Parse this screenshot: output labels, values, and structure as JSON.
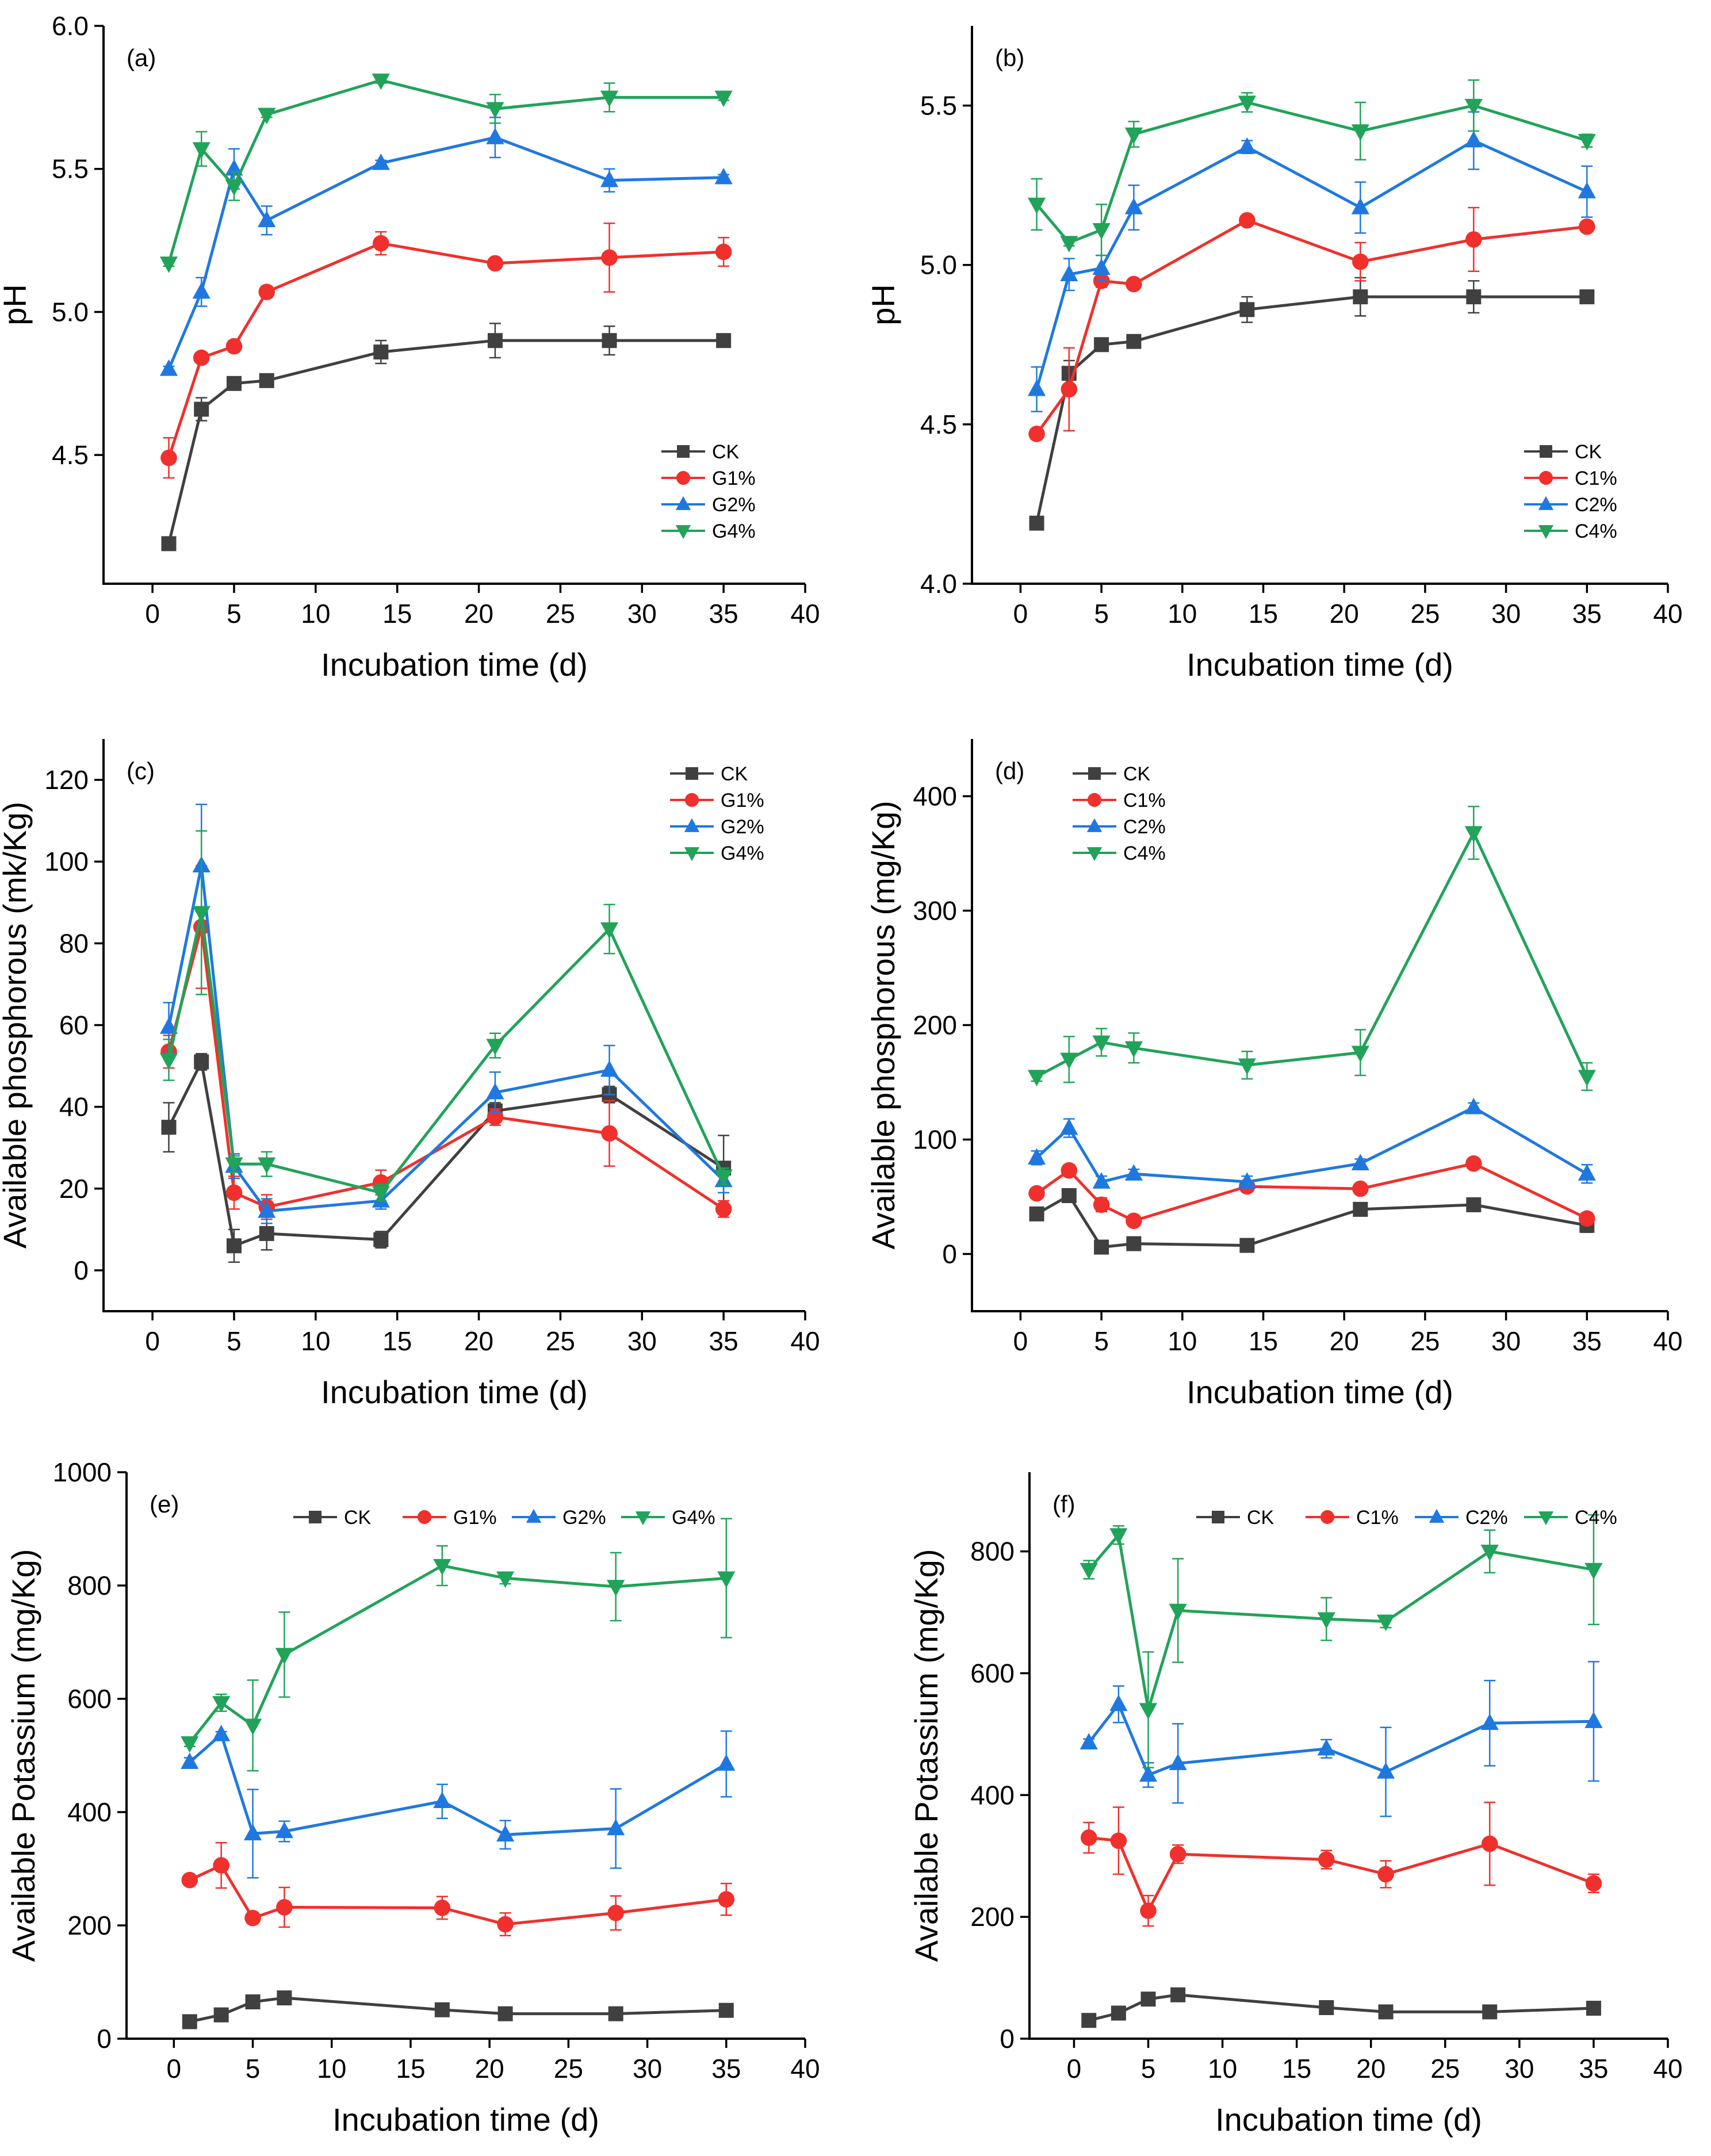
{
  "chart_data": [
    {
      "id": "a",
      "type": "line",
      "panel_label": "(a)",
      "xlabel": "Incubation time (d)",
      "ylabel": "pH",
      "xlim": [
        -3,
        40
      ],
      "ylim": [
        4.05,
        6.0
      ],
      "xticks": [
        0,
        5,
        10,
        15,
        20,
        25,
        30,
        35,
        40
      ],
      "yticks": [
        4.5,
        5.0,
        5.5,
        6.0
      ],
      "yticklabels": [
        "4.5",
        "5.0",
        "5.5",
        "6.0"
      ],
      "legend": "bottom-right-vertical",
      "x": [
        1,
        3,
        5,
        7,
        14,
        21,
        28,
        35
      ],
      "series": [
        {
          "name": "CK",
          "color": "#404040",
          "marker": "square",
          "values": [
            4.19,
            4.66,
            4.75,
            4.76,
            4.86,
            4.9,
            4.9,
            4.9
          ],
          "errors": [
            0.02,
            0.04,
            0.02,
            0.02,
            0.04,
            0.06,
            0.05,
            0.01
          ]
        },
        {
          "name": "G1%",
          "color": "#f0302c",
          "marker": "circle",
          "values": [
            4.49,
            4.84,
            4.88,
            5.07,
            5.24,
            5.17,
            5.19,
            5.21
          ],
          "errors": [
            0.07,
            0.01,
            0.02,
            0.02,
            0.04,
            0.01,
            0.12,
            0.05
          ]
        },
        {
          "name": "G2%",
          "color": "#1f78e0",
          "marker": "tri-up",
          "values": [
            4.8,
            5.07,
            5.5,
            5.32,
            5.52,
            5.61,
            5.46,
            5.47
          ],
          "errors": [
            0.01,
            0.05,
            0.07,
            0.05,
            0.01,
            0.07,
            0.04,
            0.01
          ]
        },
        {
          "name": "G4%",
          "color": "#21a359",
          "marker": "tri-down",
          "values": [
            5.17,
            5.57,
            5.44,
            5.69,
            5.81,
            5.71,
            5.75,
            5.75
          ],
          "errors": [
            0.01,
            0.06,
            0.05,
            0.01,
            0.01,
            0.05,
            0.05,
            0.01
          ]
        }
      ]
    },
    {
      "id": "b",
      "type": "line",
      "panel_label": "(b)",
      "xlabel": "Incubation time (d)",
      "ylabel": "pH",
      "xlim": [
        -3,
        40
      ],
      "ylim": [
        4.0,
        5.75
      ],
      "xticks": [
        0,
        5,
        10,
        15,
        20,
        25,
        30,
        35,
        40
      ],
      "yticks": [
        4.0,
        4.5,
        5.0,
        5.5
      ],
      "yticklabels": [
        "4.0",
        "4.5",
        "5.0",
        "5.5"
      ],
      "legend": "bottom-right-vertical",
      "x": [
        1,
        3,
        5,
        7,
        14,
        21,
        28,
        35
      ],
      "series": [
        {
          "name": "CK",
          "color": "#404040",
          "marker": "square",
          "values": [
            4.19,
            4.66,
            4.75,
            4.76,
            4.86,
            4.9,
            4.9,
            4.9
          ],
          "errors": [
            0.02,
            0.04,
            0.02,
            0.02,
            0.04,
            0.06,
            0.05,
            0.01
          ]
        },
        {
          "name": "C1%",
          "color": "#f0302c",
          "marker": "circle",
          "values": [
            4.47,
            4.61,
            4.95,
            4.94,
            5.14,
            5.01,
            5.08,
            5.12
          ],
          "errors": [
            0.01,
            0.13,
            0.02,
            0.01,
            0.01,
            0.06,
            0.1,
            0.01
          ]
        },
        {
          "name": "C2%",
          "color": "#1f78e0",
          "marker": "tri-up",
          "values": [
            4.61,
            4.97,
            4.99,
            5.18,
            5.37,
            5.18,
            5.39,
            5.23
          ],
          "errors": [
            0.07,
            0.05,
            0.04,
            0.07,
            0.02,
            0.08,
            0.09,
            0.08
          ]
        },
        {
          "name": "C4%",
          "color": "#21a359",
          "marker": "tri-down",
          "values": [
            5.19,
            5.07,
            5.11,
            5.41,
            5.51,
            5.42,
            5.5,
            5.39
          ],
          "errors": [
            0.08,
            0.01,
            0.08,
            0.04,
            0.03,
            0.09,
            0.08,
            0.02
          ]
        }
      ]
    },
    {
      "id": "c",
      "type": "line",
      "panel_label": "(c)",
      "xlabel": "Incubation time (d)",
      "ylabel": "Available phosphorous (mk/Kg)",
      "xlim": [
        -3,
        40
      ],
      "ylim": [
        -10,
        130
      ],
      "xticks": [
        0,
        5,
        10,
        15,
        20,
        25,
        30,
        35,
        40
      ],
      "yticks": [
        0,
        20,
        40,
        60,
        80,
        100,
        120
      ],
      "yticklabels": [
        "0",
        "20",
        "40",
        "60",
        "80",
        "100",
        "120"
      ],
      "legend": "top-right-vertical",
      "x": [
        1,
        3,
        5,
        7,
        14,
        21,
        28,
        35
      ],
      "series": [
        {
          "name": "CK",
          "color": "#404040",
          "marker": "square",
          "values": [
            35,
            51,
            6,
            9,
            7.5,
            39,
            43,
            25
          ],
          "errors": [
            6,
            2,
            4,
            4,
            2,
            2,
            2,
            8
          ]
        },
        {
          "name": "G1%",
          "color": "#f0302c",
          "marker": "circle",
          "values": [
            53.5,
            84,
            19,
            15.5,
            21.5,
            37.5,
            33.5,
            15
          ],
          "errors": [
            4,
            15,
            4,
            3,
            3,
            2,
            8,
            2
          ]
        },
        {
          "name": "G2%",
          "color": "#1f78e0",
          "marker": "tri-up",
          "values": [
            59.5,
            99,
            25.5,
            14.5,
            17,
            43.5,
            49,
            22
          ],
          "errors": [
            6,
            15,
            3,
            3,
            2,
            5,
            6,
            3
          ]
        },
        {
          "name": "G4%",
          "color": "#21a359",
          "marker": "tri-down",
          "values": [
            51.5,
            87.5,
            26,
            26,
            19,
            55,
            83.5,
            23
          ],
          "errors": [
            5,
            20,
            2,
            3,
            2,
            3,
            6,
            2
          ]
        }
      ]
    },
    {
      "id": "d",
      "type": "line",
      "panel_label": "(d)",
      "xlabel": "Incubation time (d)",
      "ylabel": "Available phosphorous (mg/Kg)",
      "xlim": [
        -3,
        40
      ],
      "ylim": [
        -50,
        450
      ],
      "xticks": [
        0,
        5,
        10,
        15,
        20,
        25,
        30,
        35,
        40
      ],
      "yticks": [
        0,
        100,
        200,
        300,
        400
      ],
      "yticklabels": [
        "0",
        "100",
        "200",
        "300",
        "400"
      ],
      "legend": "top-left-vertical",
      "x": [
        1,
        3,
        5,
        7,
        14,
        21,
        28,
        35
      ],
      "series": [
        {
          "name": "CK",
          "color": "#404040",
          "marker": "square",
          "values": [
            35,
            51,
            6,
            9,
            7.5,
            39,
            43,
            25
          ],
          "errors": [
            4,
            3,
            3,
            3,
            2,
            3,
            3,
            6
          ]
        },
        {
          "name": "C1%",
          "color": "#f0302c",
          "marker": "circle",
          "values": [
            53,
            73,
            43,
            29,
            59,
            57,
            79,
            31
          ],
          "errors": [
            4,
            5,
            6,
            3,
            4,
            3,
            4,
            5
          ]
        },
        {
          "name": "C2%",
          "color": "#1f78e0",
          "marker": "tri-up",
          "values": [
            84,
            110,
            63,
            70,
            63,
            79,
            128,
            70
          ],
          "errors": [
            6,
            8,
            5,
            4,
            5,
            4,
            4,
            8
          ]
        },
        {
          "name": "C4%",
          "color": "#21a359",
          "marker": "tri-down",
          "values": [
            155,
            170,
            185,
            180,
            165,
            176,
            368,
            155
          ],
          "errors": [
            4,
            20,
            12,
            13,
            12,
            20,
            23,
            12
          ]
        }
      ]
    },
    {
      "id": "e",
      "type": "line",
      "panel_label": "(e)",
      "xlabel": "Incubation time (d)",
      "ylabel": "Available Potassium (mg/Kg)",
      "xlim": [
        -3,
        40
      ],
      "ylim": [
        0,
        1000
      ],
      "xticks": [
        0,
        5,
        10,
        15,
        20,
        25,
        30,
        35,
        40
      ],
      "yticks": [
        0,
        200,
        400,
        600,
        800,
        1000
      ],
      "yticklabels": [
        "0",
        "200",
        "400",
        "600",
        "800",
        "1000"
      ],
      "legend": "top-horizontal",
      "x": [
        1,
        3,
        5,
        7,
        17,
        21,
        28,
        35
      ],
      "series": [
        {
          "name": "CK",
          "color": "#404040",
          "marker": "square",
          "values": [
            30,
            42,
            65,
            72,
            51,
            44,
            44,
            50
          ],
          "errors": [
            3,
            4,
            4,
            4,
            3,
            3,
            3,
            3
          ]
        },
        {
          "name": "G1%",
          "color": "#f0302c",
          "marker": "circle",
          "values": [
            280,
            306,
            213,
            232,
            231,
            202,
            222,
            246
          ],
          "errors": [
            5,
            40,
            10,
            35,
            20,
            20,
            30,
            28
          ]
        },
        {
          "name": "G2%",
          "color": "#1f78e0",
          "marker": "tri-up",
          "values": [
            488,
            537,
            362,
            366,
            419,
            360,
            371,
            485
          ],
          "errors": [
            8,
            5,
            78,
            18,
            30,
            25,
            70,
            58
          ]
        },
        {
          "name": "G4%",
          "color": "#21a359",
          "marker": "tri-down",
          "values": [
            522,
            593,
            553,
            678,
            835,
            813,
            798,
            813
          ],
          "errors": [
            6,
            15,
            80,
            75,
            35,
            10,
            60,
            105
          ]
        }
      ]
    },
    {
      "id": "f",
      "type": "line",
      "panel_label": "(f)",
      "xlabel": "Incubation time (d)",
      "ylabel": "Available Potassium (mg/Kg)",
      "xlim": [
        -3,
        40
      ],
      "ylim": [
        0,
        930
      ],
      "xticks": [
        0,
        5,
        10,
        15,
        20,
        25,
        30,
        35,
        40
      ],
      "yticks": [
        0,
        200,
        400,
        600,
        800
      ],
      "yticklabels": [
        "0",
        "200",
        "400",
        "600",
        "800"
      ],
      "legend": "top-horizontal",
      "x": [
        1,
        3,
        5,
        7,
        17,
        21,
        28,
        35
      ],
      "series": [
        {
          "name": "CK",
          "color": "#404040",
          "marker": "square",
          "values": [
            30,
            42,
            65,
            72,
            51,
            44,
            44,
            50
          ],
          "errors": [
            3,
            4,
            4,
            4,
            3,
            3,
            3,
            3
          ]
        },
        {
          "name": "C1%",
          "color": "#f0302c",
          "marker": "circle",
          "values": [
            330,
            325,
            210,
            303,
            294,
            270,
            320,
            255
          ],
          "errors": [
            25,
            55,
            25,
            15,
            15,
            22,
            68,
            15
          ]
        },
        {
          "name": "C2%",
          "color": "#1f78e0",
          "marker": "tri-up",
          "values": [
            486,
            549,
            433,
            452,
            476,
            438,
            518,
            521
          ],
          "errors": [
            6,
            30,
            20,
            65,
            15,
            73,
            70,
            98
          ]
        },
        {
          "name": "C4%",
          "color": "#21a359",
          "marker": "tri-down",
          "values": [
            770,
            827,
            540,
            703,
            689,
            685,
            800,
            770
          ],
          "errors": [
            15,
            15,
            95,
            85,
            35,
            10,
            35,
            90
          ]
        }
      ]
    }
  ]
}
